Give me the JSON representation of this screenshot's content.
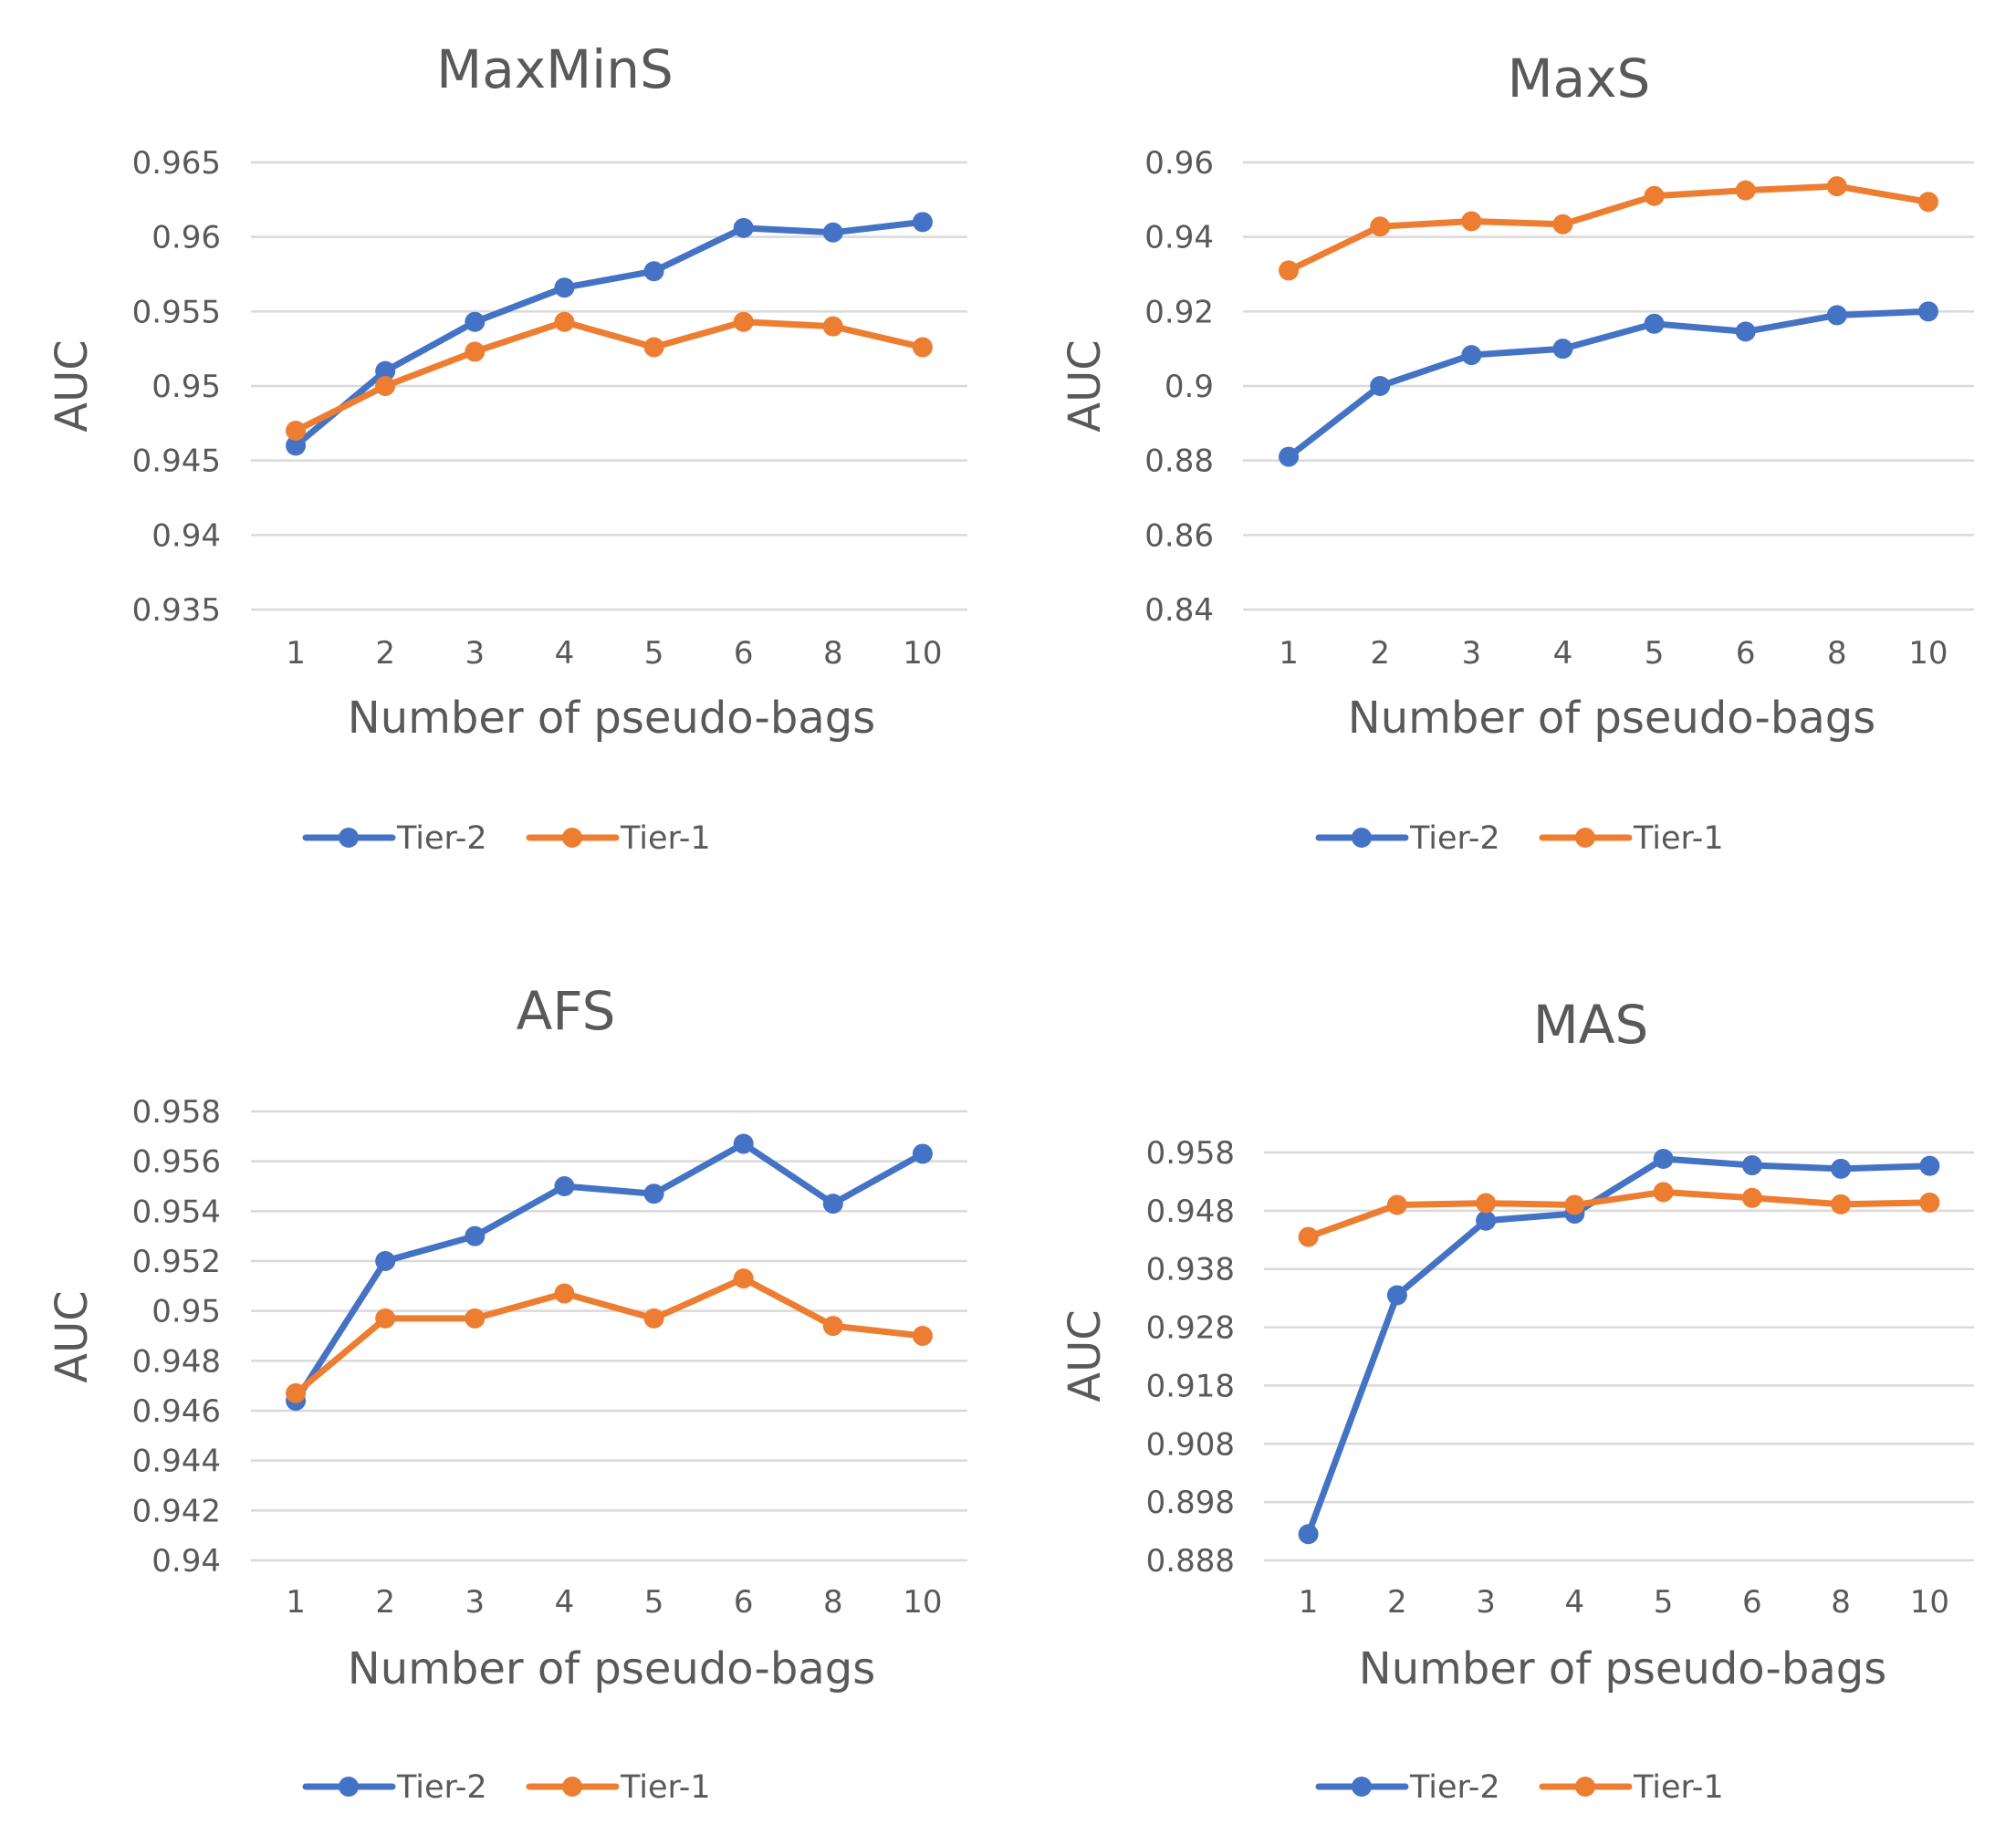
{
  "colors": {
    "tier2": "#4472C4",
    "tier1": "#ED7D31",
    "grid": "#D9D9D9",
    "text": "#595959"
  },
  "chart_data": [
    {
      "type": "line",
      "title": "MaxMinS",
      "xlabel": "Number of pseudo-bags",
      "ylabel": "AUC",
      "categories": [
        "1",
        "2",
        "3",
        "4",
        "5",
        "6",
        "8",
        "10"
      ],
      "yticks": [
        "0.935",
        "0.94",
        "0.945",
        "0.95",
        "0.955",
        "0.96",
        "0.965"
      ],
      "ylim": [
        0.935,
        0.965
      ],
      "grid": true,
      "legend_position": "bottom",
      "series": [
        {
          "name": "Tier-2",
          "values": [
            0.946,
            0.951,
            0.9543,
            0.9566,
            0.9577,
            0.9606,
            0.9603,
            0.961
          ]
        },
        {
          "name": "Tier-1",
          "values": [
            0.947,
            0.95,
            0.9523,
            0.9543,
            0.9526,
            0.9543,
            0.954,
            0.9526
          ]
        }
      ]
    },
    {
      "type": "line",
      "title": "MaxS",
      "xlabel": "Number of pseudo-bags",
      "ylabel": "AUC",
      "categories": [
        "1",
        "2",
        "3",
        "4",
        "5",
        "6",
        "8",
        "10"
      ],
      "yticks": [
        "0.84",
        "0.86",
        "0.88",
        "0.9",
        "0.92",
        "0.94",
        "0.96"
      ],
      "ylim": [
        0.84,
        0.96
      ],
      "grid": true,
      "legend_position": "bottom",
      "series": [
        {
          "name": "Tier-2",
          "values": [
            0.881,
            0.9,
            0.9083,
            0.91,
            0.9167,
            0.9146,
            0.919,
            0.92
          ]
        },
        {
          "name": "Tier-1",
          "values": [
            0.931,
            0.9428,
            0.9442,
            0.9434,
            0.951,
            0.9525,
            0.9536,
            0.9494
          ]
        }
      ]
    },
    {
      "type": "line",
      "title": "AFS",
      "xlabel": "Number of pseudo-bags",
      "ylabel": "AUC",
      "categories": [
        "1",
        "2",
        "3",
        "4",
        "5",
        "6",
        "8",
        "10"
      ],
      "yticks": [
        "0.94",
        "0.942",
        "0.944",
        "0.946",
        "0.948",
        "0.95",
        "0.952",
        "0.954",
        "0.956",
        "0.958"
      ],
      "ylim": [
        0.94,
        0.958
      ],
      "grid": true,
      "legend_position": "bottom",
      "series": [
        {
          "name": "Tier-2",
          "values": [
            0.9464,
            0.952,
            0.953,
            0.955,
            0.9547,
            0.9567,
            0.9543,
            0.9563
          ]
        },
        {
          "name": "Tier-1",
          "values": [
            0.9467,
            0.9497,
            0.9497,
            0.9507,
            0.9497,
            0.9513,
            0.9494,
            0.949
          ]
        }
      ]
    },
    {
      "type": "line",
      "title": "MAS",
      "xlabel": "Number of pseudo-bags",
      "ylabel": "AUC",
      "categories": [
        "1",
        "2",
        "3",
        "4",
        "5",
        "6",
        "8",
        "10"
      ],
      "yticks": [
        "0.888",
        "0.898",
        "0.908",
        "0.918",
        "0.928",
        "0.938",
        "0.948",
        "0.958"
      ],
      "ylim": [
        0.888,
        0.958
      ],
      "grid": true,
      "legend_position": "bottom",
      "series": [
        {
          "name": "Tier-2",
          "values": [
            0.8925,
            0.9335,
            0.9463,
            0.9475,
            0.9569,
            0.9558,
            0.9552,
            0.9557
          ]
        },
        {
          "name": "Tier-1",
          "values": [
            0.9435,
            0.949,
            0.9493,
            0.949,
            0.9512,
            0.9502,
            0.9491,
            0.9494
          ]
        }
      ]
    }
  ]
}
